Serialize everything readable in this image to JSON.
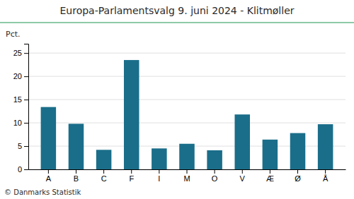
{
  "chart_data": {
    "type": "bar",
    "title": "Europa-Parlamentsvalg 9. juni 2024 - Klitmøller",
    "ylabel": "Pct.",
    "annotations": [
      "© Danmarks Statistik"
    ],
    "categories": [
      "A",
      "B",
      "C",
      "F",
      "I",
      "M",
      "O",
      "V",
      "Æ",
      "Ø",
      "Å"
    ],
    "values": [
      13.4,
      9.8,
      4.2,
      23.5,
      4.5,
      5.5,
      4.1,
      11.8,
      6.4,
      7.8,
      9.7
    ],
    "color": "#1a6e8a",
    "ylim": [
      0,
      27
    ],
    "yticks": [
      0,
      5,
      10,
      15,
      20,
      25
    ],
    "grid": true
  }
}
